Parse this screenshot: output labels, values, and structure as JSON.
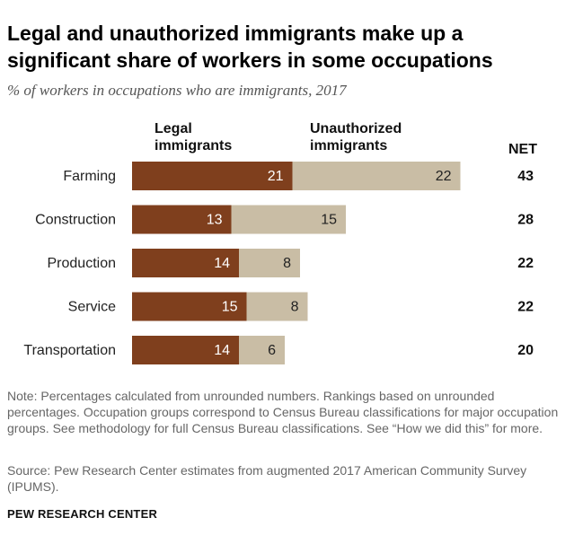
{
  "header": {
    "title": "Legal and unauthorized immigrants make up a significant share of workers in some occupations",
    "subtitle": "% of workers in occupations who are immigrants, 2017"
  },
  "legend": {
    "legal_line1": "Legal",
    "legal_line2": "immigrants",
    "unauth_line1": "Unauthorized",
    "unauth_line2": "immigrants",
    "net": "NET"
  },
  "colors": {
    "legal": "#7f3f1d",
    "unauthorized": "#c9bda5"
  },
  "chart_data": {
    "type": "bar",
    "orientation": "horizontal",
    "stacked": true,
    "categories": [
      "Farming",
      "Construction",
      "Production",
      "Service",
      "Transportation"
    ],
    "series": [
      {
        "name": "Legal immigrants",
        "values": [
          21,
          13,
          14,
          15,
          14
        ]
      },
      {
        "name": "Unauthorized immigrants",
        "values": [
          22,
          15,
          8,
          8,
          6
        ]
      }
    ],
    "net": [
      43,
      28,
      22,
      22,
      20
    ],
    "net_label": "NET"
  },
  "footer": {
    "note": "Note: Percentages calculated from unrounded numbers. Rankings based on unrounded percentages. Occupation groups correspond to Census Bureau classifications for major occupation groups. See methodology for full Census Bureau classifications. See “How we did this” for more.",
    "source": "Source: Pew Research Center estimates from augmented 2017 American Community Survey (IPUMS).",
    "brand": "PEW RESEARCH CENTER"
  }
}
